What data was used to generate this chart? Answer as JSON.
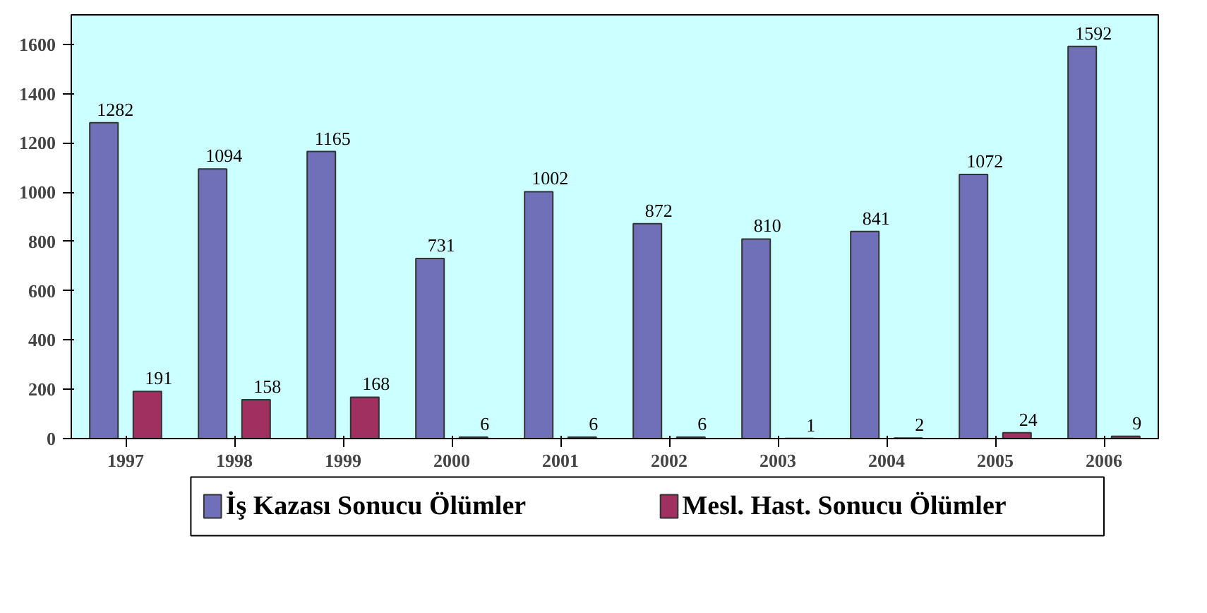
{
  "chart_data": {
    "type": "bar",
    "categories": [
      "1997",
      "1998",
      "1999",
      "2000",
      "2001",
      "2002",
      "2003",
      "2004",
      "2005",
      "2006"
    ],
    "series": [
      {
        "name": "İş Kazası Sonucu Ölümler",
        "color": "#7070b8",
        "values": [
          1282,
          1094,
          1165,
          731,
          1002,
          872,
          810,
          841,
          1072,
          1592
        ]
      },
      {
        "name": "Mesl. Hast. Sonucu Ölümler",
        "color": "#a03060",
        "values": [
          191,
          158,
          168,
          6,
          6,
          6,
          1,
          2,
          24,
          9
        ]
      }
    ],
    "ylim": [
      0,
      1720
    ],
    "yticks": [
      0,
      200,
      400,
      600,
      800,
      1000,
      1200,
      1400,
      1600
    ],
    "data_labels": true,
    "grid": false,
    "legend": "bottom"
  }
}
